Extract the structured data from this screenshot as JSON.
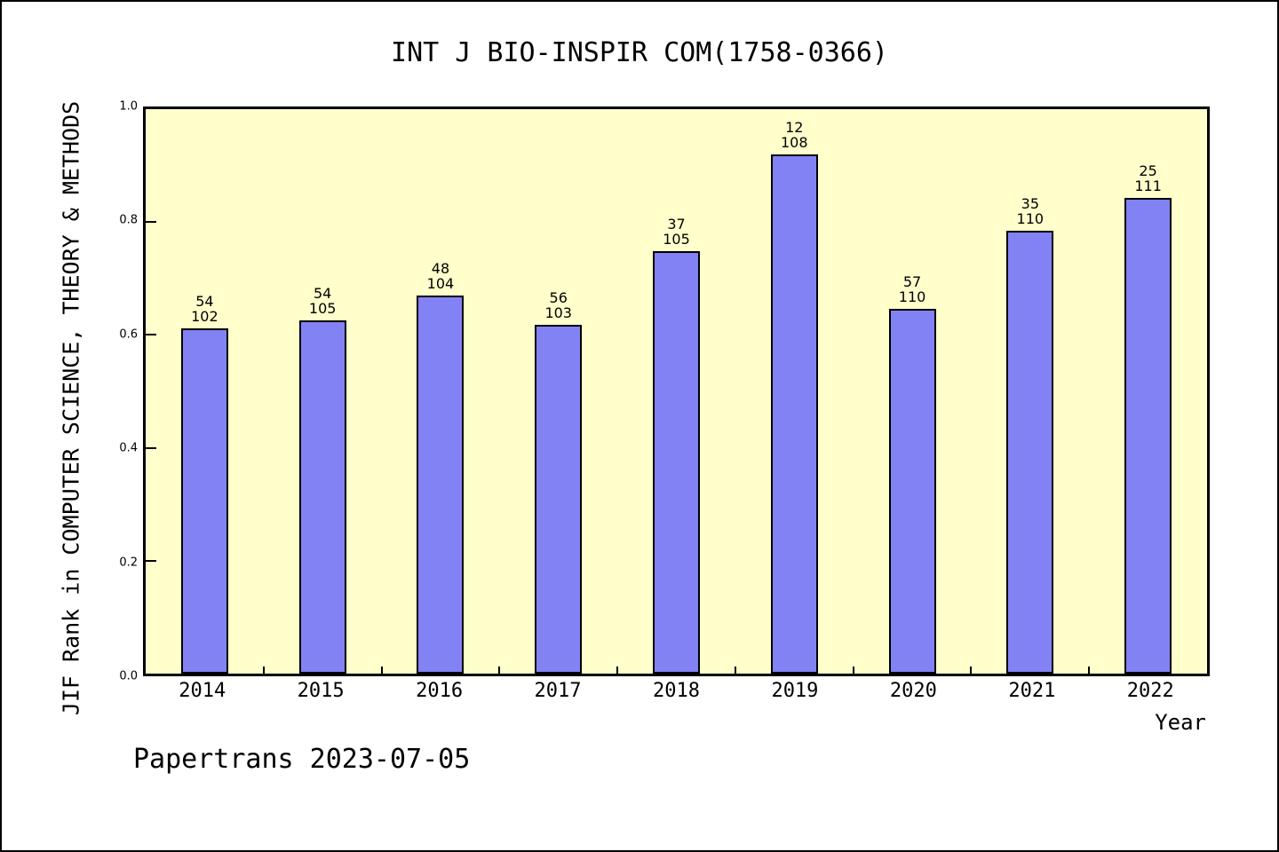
{
  "chart_data": {
    "type": "bar",
    "title": "INT J BIO-INSPIR COM(1758-0366)",
    "xlabel": "Year",
    "ylabel": "JIF Rank in COMPUTER SCIENCE, THEORY & METHODS",
    "categories": [
      "2014",
      "2015",
      "2016",
      "2017",
      "2018",
      "2019",
      "2020",
      "2021",
      "2022"
    ],
    "values": [
      0.611,
      0.626,
      0.67,
      0.618,
      0.748,
      0.92,
      0.646,
      0.785,
      0.843
    ],
    "bar_annotations": [
      {
        "rank": "54",
        "total": "102"
      },
      {
        "rank": "54",
        "total": "105"
      },
      {
        "rank": "48",
        "total": "104"
      },
      {
        "rank": "56",
        "total": "103"
      },
      {
        "rank": "37",
        "total": "105"
      },
      {
        "rank": "12",
        "total": "108"
      },
      {
        "rank": "57",
        "total": "110"
      },
      {
        "rank": "35",
        "total": "110"
      },
      {
        "rank": "25",
        "total": "111"
      }
    ],
    "y_ticks": [
      "0.0",
      "0.2",
      "0.4",
      "0.6",
      "0.8",
      "1.0"
    ],
    "ylim": [
      0.0,
      1.0
    ],
    "grid": false,
    "legend_position": "none",
    "bar_color": "#8282f5",
    "bar_border_color": "#000000",
    "plot_bg": "#ffffcc",
    "frame_color": "#000000"
  },
  "footer": {
    "text": "Papertrans 2023-07-05"
  }
}
